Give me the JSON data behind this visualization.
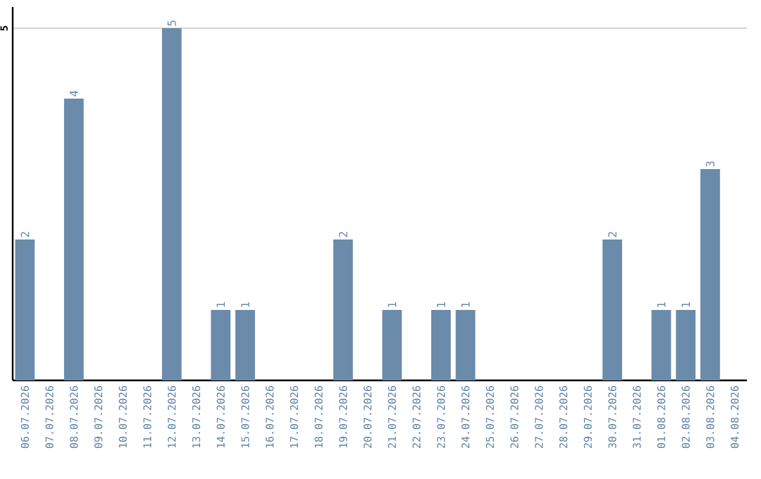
{
  "chart_data": {
    "type": "bar",
    "categories": [
      "06.07.2026",
      "07.07.2026",
      "08.07.2026",
      "09.07.2026",
      "10.07.2026",
      "11.07.2026",
      "12.07.2026",
      "13.07.2026",
      "14.07.2026",
      "15.07.2026",
      "16.07.2026",
      "17.07.2026",
      "18.07.2026",
      "19.07.2026",
      "20.07.2026",
      "21.07.2026",
      "22.07.2026",
      "23.07.2026",
      "24.07.2026",
      "25.07.2026",
      "26.07.2026",
      "27.07.2026",
      "28.07.2026",
      "29.07.2026",
      "30.07.2026",
      "31.07.2026",
      "01.08.2026",
      "02.08.2026",
      "03.08.2026",
      "04.08.2026"
    ],
    "values": [
      2,
      0,
      4,
      0,
      0,
      0,
      5,
      0,
      1,
      1,
      0,
      0,
      0,
      2,
      0,
      1,
      0,
      1,
      1,
      0,
      0,
      0,
      0,
      0,
      2,
      0,
      1,
      1,
      3,
      0
    ],
    "value_labels": [
      "2",
      null,
      "4",
      null,
      null,
      null,
      "5",
      null,
      "1",
      "1",
      null,
      null,
      null,
      "2",
      null,
      "1",
      null,
      "1",
      "1",
      null,
      null,
      null,
      null,
      null,
      "2",
      null,
      "1",
      "1",
      "3",
      null
    ],
    "color": "#6b8bab",
    "ylim": [
      0,
      5.3
    ],
    "yticks": [
      5
    ],
    "grid": "y"
  }
}
